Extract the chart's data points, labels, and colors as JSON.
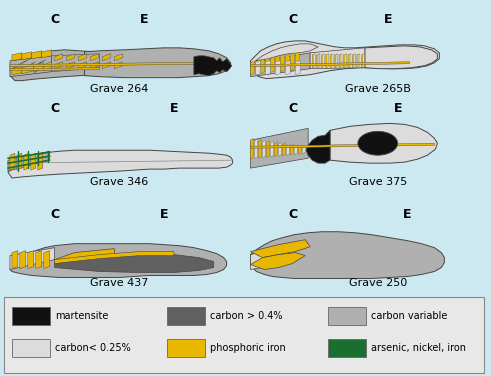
{
  "bg": "#cce8f0",
  "colors": {
    "martensite": "#111111",
    "carbon_high": "#606060",
    "carbon_variable": "#b0b0b0",
    "carbon_low": "#dcdcdc",
    "phosphoric": "#e8b800",
    "arsenic": "#1a6e30"
  },
  "legend_items": [
    {
      "color": "#111111",
      "label": "martensite",
      "col": 0,
      "row": 0
    },
    {
      "color": "#606060",
      "label": "carbon > 0.4%",
      "col": 1,
      "row": 0
    },
    {
      "color": "#b0b0b0",
      "label": "carbon variable",
      "col": 2,
      "row": 0
    },
    {
      "color": "#dcdcdc",
      "label": "carbon< 0.25%",
      "col": 0,
      "row": 1
    },
    {
      "color": "#e8b800",
      "label": "phosphoric iron",
      "col": 1,
      "row": 1
    },
    {
      "color": "#1a6e30",
      "label": "arsenic, nickel, iron",
      "col": 2,
      "row": 1
    }
  ]
}
